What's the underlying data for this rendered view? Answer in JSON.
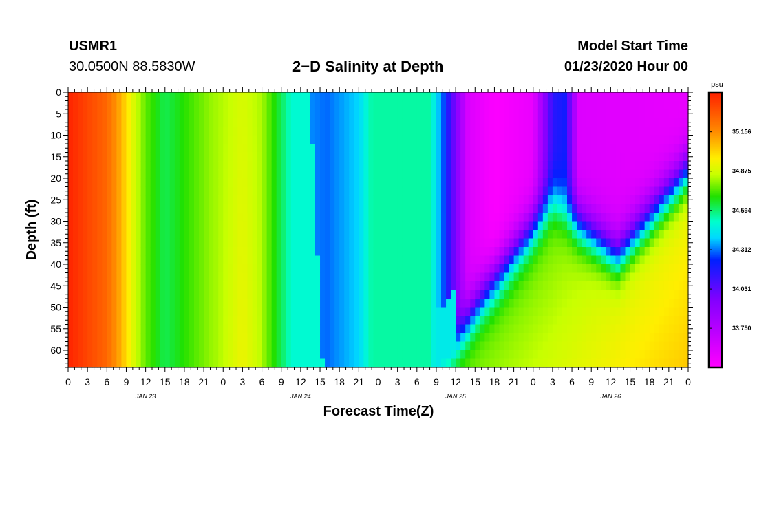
{
  "header": {
    "station": "USMR1",
    "coords": "30.0500N 88.5830W",
    "title": "2−D Salinity at Depth",
    "model_start_label": "Model Start Time",
    "model_start_value": "01/23/2020 Hour 00"
  },
  "chart_data": {
    "type": "heatmap",
    "title": "2−D Salinity at Depth",
    "xlabel": "Forecast Time(Z)",
    "ylabel": "Depth (ft)",
    "x_unit": "hours since 01/23/2020 00Z",
    "xlim": [
      0,
      96
    ],
    "ylim": [
      0,
      64
    ],
    "x_tick_labels": [
      "0",
      "3",
      "6",
      "9",
      "12",
      "15",
      "18",
      "21",
      "0",
      "3",
      "6",
      "9",
      "12",
      "15",
      "18",
      "21",
      "0",
      "3",
      "6",
      "9",
      "12",
      "15",
      "18",
      "21",
      "0",
      "3",
      "6",
      "9",
      "12",
      "15",
      "18",
      "21",
      "0"
    ],
    "y_tick_labels": [
      "0",
      "5",
      "10",
      "15",
      "20",
      "25",
      "30",
      "35",
      "40",
      "45",
      "50",
      "55",
      "60"
    ],
    "date_labels": [
      {
        "text": "JAN 23",
        "hour": 12
      },
      {
        "text": "JAN 24",
        "hour": 36
      },
      {
        "text": "JAN 25",
        "hour": 60
      },
      {
        "text": "JAN 26",
        "hour": 84
      }
    ],
    "colorbar": {
      "unit": "psu",
      "min": 33.47,
      "max": 35.44,
      "ticks": [
        "35.156",
        "34.875",
        "34.594",
        "34.312",
        "34.031",
        "33.750"
      ]
    },
    "surface_salinity_profile": [
      {
        "hour": 0,
        "psu": 35.43
      },
      {
        "hour": 6,
        "psu": 35.25
      },
      {
        "hour": 8,
        "psu": 35.1
      },
      {
        "hour": 10,
        "psu": 34.9
      },
      {
        "hour": 12,
        "psu": 34.75
      },
      {
        "hour": 15,
        "psu": 34.62
      },
      {
        "hour": 22,
        "psu": 34.8
      },
      {
        "hour": 27,
        "psu": 34.88
      },
      {
        "hour": 30,
        "psu": 34.82
      },
      {
        "hour": 34,
        "psu": 34.55
      },
      {
        "hour": 36,
        "psu": 34.35
      },
      {
        "hour": 40,
        "psu": 34.3
      },
      {
        "hour": 45,
        "psu": 34.4
      },
      {
        "hour": 47,
        "psu": 34.55
      },
      {
        "hour": 56,
        "psu": 34.55
      },
      {
        "hour": 58,
        "psu": 34.3
      },
      {
        "hour": 62,
        "psu": 33.6
      },
      {
        "hour": 66,
        "psu": 33.48
      },
      {
        "hour": 72,
        "psu": 33.55
      },
      {
        "hour": 75,
        "psu": 34.15
      },
      {
        "hour": 77,
        "psu": 34.2
      },
      {
        "hour": 79,
        "psu": 33.6
      },
      {
        "hour": 96,
        "psu": 33.55
      }
    ]
  }
}
